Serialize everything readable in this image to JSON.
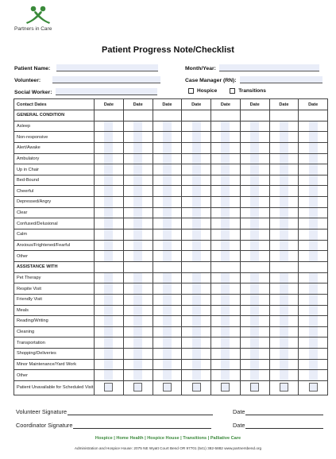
{
  "logo": {
    "name": "Partners in Care",
    "icon": "people-circle-logo",
    "color": "#3a8a3a"
  },
  "title": "Patient Progress Note/Checklist",
  "fields": {
    "patient_name": "Patient Name:",
    "volunteer": "Volunteer:",
    "social_worker": "Social Worker:",
    "month_year": "Month/Year:",
    "case_manager": "Case Manager (RN):",
    "hospice": "Hospice",
    "transitions": "Transitions"
  },
  "table": {
    "header_first": "Contact Dates",
    "date_columns": [
      "Date",
      "Date",
      "Date",
      "Date",
      "Date",
      "Date",
      "Date",
      "Date"
    ],
    "sections": [
      {
        "title": "GENERAL CONDITION",
        "items": [
          "Asleep",
          "Non-responsive",
          "Alert/Awake",
          "Ambulatory",
          "Up in Chair",
          "Bed-Bound",
          "Cheerful",
          "Depressed/Angry",
          "Clear",
          "Confused/Delusional",
          "Calm",
          "Anxious/Frightened/Fearful",
          "Other"
        ]
      },
      {
        "title": "ASSISTANCE WITH",
        "items": [
          "Pet Therapy",
          "Respite Visit",
          "Friendly Visit",
          "Meals",
          "Reading/Writing",
          "Cleaning",
          "Transportation",
          "Shopping/Deliveries",
          "Minor Maintenance/Yard Work",
          "Other"
        ]
      }
    ],
    "last_row": "Patient Unavailable for Scheduled Visit"
  },
  "signatures": {
    "volunteer": "Volunteer Signature",
    "coordinator": "Coordinator Signature",
    "date": "Date"
  },
  "footer": {
    "services": "Hospice  |  Home Health  |  Hospice House  |  Transitions  |  Palliative Care",
    "address": "Administration and Hospice House: 2075 NE Wyatt Court Bend OR 97701  (541) 382-5882  www.partnersbend.org"
  },
  "colors": {
    "field_fill": "#e9edf8",
    "brand_green": "#3a8a3a"
  }
}
